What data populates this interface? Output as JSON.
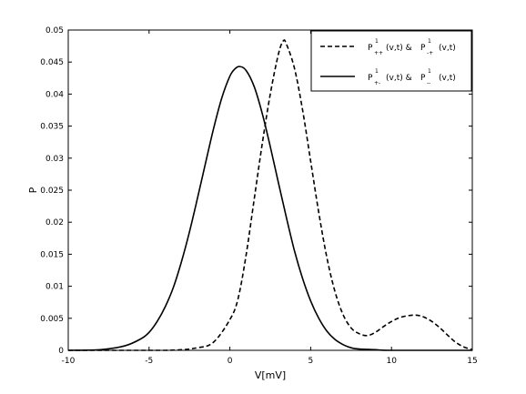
{
  "chart_data": {
    "type": "line",
    "xlabel": "V[mV]",
    "ylabel": "P",
    "xlim": [
      -10,
      15
    ],
    "ylim": [
      0,
      0.05
    ],
    "xticks": [
      "-10",
      "-5",
      "0",
      "5",
      "10",
      "15"
    ],
    "yticks": [
      "0",
      "0.005",
      "0.01",
      "0.015",
      "0.02",
      "0.025",
      "0.03",
      "0.035",
      "0.04",
      "0.045",
      "0.05"
    ],
    "grid": false,
    "legend_position": "top-right",
    "series": [
      {
        "name": "P¹₊₊(v,t) & P¹₋₊(v,t)",
        "style": "dashed",
        "color": "#000000",
        "x": [
          -10,
          -4,
          -2,
          -1,
          0,
          0.5,
          1,
          1.5,
          2,
          2.5,
          3,
          3.3,
          3.5,
          4,
          4.5,
          5,
          5.5,
          6,
          6.5,
          7,
          7.5,
          8,
          8.5,
          9,
          9.5,
          10,
          10.5,
          11,
          11.5,
          12,
          12.5,
          13,
          13.5,
          14,
          14.5,
          15
        ],
        "values": [
          0,
          0,
          0.0004,
          0.0013,
          0.0048,
          0.008,
          0.0148,
          0.0235,
          0.0322,
          0.04,
          0.0462,
          0.0483,
          0.0478,
          0.044,
          0.0375,
          0.0295,
          0.0215,
          0.0145,
          0.0092,
          0.0056,
          0.0035,
          0.0026,
          0.0023,
          0.0028,
          0.0037,
          0.0045,
          0.0051,
          0.0054,
          0.0055,
          0.0052,
          0.0045,
          0.0035,
          0.0023,
          0.0012,
          0.0005,
          0.0001
        ]
      },
      {
        "name": "P¹₊₋(v,t) & P¹₋₋(v,t)",
        "style": "solid",
        "color": "#000000",
        "x": [
          -10,
          -8,
          -6.5,
          -5.5,
          -5,
          -4.5,
          -4,
          -3.5,
          -3,
          -2.5,
          -2,
          -1.5,
          -1,
          -0.5,
          0,
          0.3,
          0.6,
          1,
          1.5,
          2,
          2.5,
          3,
          3.5,
          4,
          4.5,
          5,
          5.5,
          6,
          6.5,
          7,
          7.5,
          8,
          9,
          10,
          15
        ],
        "values": [
          0,
          0.0001,
          0.0007,
          0.0018,
          0.0028,
          0.0045,
          0.0068,
          0.0098,
          0.0138,
          0.0185,
          0.0238,
          0.0293,
          0.0347,
          0.0394,
          0.0428,
          0.0439,
          0.0443,
          0.0437,
          0.0412,
          0.037,
          0.0318,
          0.0262,
          0.0207,
          0.0155,
          0.0112,
          0.0077,
          0.005,
          0.003,
          0.0017,
          0.0009,
          0.0004,
          0.0002,
          0.0001,
          0,
          0
        ]
      }
    ],
    "legend": [
      {
        "sym": "P",
        "sup": "1",
        "sub_a": "++",
        "args": "(v,t) & ",
        "sym2": "P",
        "sup2": "1",
        "sub_b": "-+",
        "args2": "(v,t)"
      },
      {
        "sym": "P",
        "sup": "1",
        "sub_a": "+-",
        "args": "(v,t) & ",
        "sym2": "P",
        "sup2": "1",
        "sub_b": "--",
        "args2": "(v,t)"
      }
    ]
  }
}
